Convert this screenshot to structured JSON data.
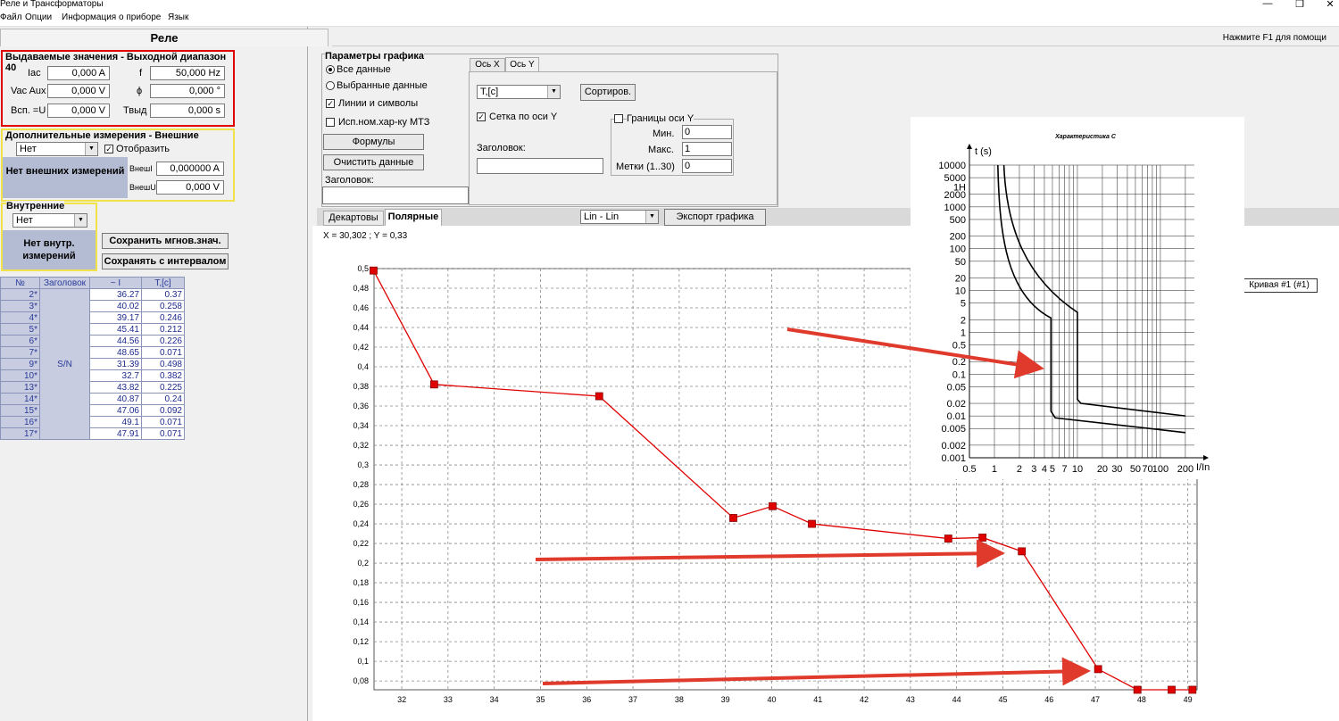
{
  "window": {
    "title": "Реле и Трансформаторы",
    "menu": [
      "Файл",
      "Опции",
      "Информация о приборе",
      "Язык"
    ],
    "tab_rele": "Реле",
    "help": "Нажмите F1 для помощи"
  },
  "output": {
    "title": "Выдаваемые значения - Выходной диапазон 40",
    "iac_label": "Iac",
    "iac_value": "0,000 A",
    "vac_label": "Vac Aux",
    "vac_value": "0,000 V",
    "vsp_label": "Всп. =U",
    "vsp_value": "0,000 V",
    "f_label": "f",
    "f_value": "50,000 Hz",
    "phi_label": "ϕ",
    "phi_value": "0,000 °",
    "t_label": "Твыд",
    "t_value": "0,000 s"
  },
  "external": {
    "title": "Дополнительные измерения - Внешние",
    "combo": "Нет",
    "show_label": "Отобразить",
    "box": "Нет внешних измерений",
    "i_label": "ВнешI",
    "i_value": "0,000000 A",
    "u_label": "ВнешU",
    "u_value": "0,000 V"
  },
  "internal": {
    "title": "Внутренние",
    "combo": "Нет",
    "box": "Нет внутр. измерений",
    "save_now": "Сохранить мгнов.знач.",
    "save_interval": "Сохранять с интервалом"
  },
  "table": {
    "headers": [
      "№",
      "Заголовок",
      "~ I",
      "T,[c]"
    ],
    "group_label": "S/N",
    "rows": [
      {
        "n": "2*",
        "i": "36.27",
        "t": "0.37"
      },
      {
        "n": "3*",
        "i": "40.02",
        "t": "0.258"
      },
      {
        "n": "4*",
        "i": "39.17",
        "t": "0.246"
      },
      {
        "n": "5*",
        "i": "45.41",
        "t": "0.212"
      },
      {
        "n": "6*",
        "i": "44.56",
        "t": "0.226"
      },
      {
        "n": "7*",
        "i": "48.65",
        "t": "0.071"
      },
      {
        "n": "9*",
        "i": "31.39",
        "t": "0.498"
      },
      {
        "n": "10*",
        "i": "32.7",
        "t": "0.382"
      },
      {
        "n": "13*",
        "i": "43.82",
        "t": "0.225"
      },
      {
        "n": "14*",
        "i": "40.87",
        "t": "0.24"
      },
      {
        "n": "15*",
        "i": "47.06",
        "t": "0.092"
      },
      {
        "n": "16*",
        "i": "49.1",
        "t": "0.071"
      },
      {
        "n": "17*",
        "i": "47.91",
        "t": "0.071"
      }
    ]
  },
  "params": {
    "title": "Параметры графика",
    "all_data": "Все данные",
    "selected_data": "Выбранные данные",
    "lines_symbols": "Линии и символы",
    "use_mtz": "Исп.ном.хар-ку МТЗ",
    "formulas": "Формулы",
    "clear": "Очистить данные",
    "caption_label": "Заголовок:",
    "tab_x": "Ось X",
    "tab_y": "Ось Y",
    "y_combo": "T,[c]",
    "sort": "Сортиров.",
    "grid_y": "Сетка по оси Y",
    "bounds_y": "Границы оси Y",
    "y_caption_label": "Заголовок:",
    "min_label": "Мин.",
    "min_value": "0",
    "max_label": "Макс.",
    "max_value": "1",
    "ticks_label": "Метки (1..30)",
    "ticks_value": "0"
  },
  "graph_tabs": {
    "cartesian": "Декартовы",
    "polar": "Полярные",
    "scale": "Lin - Lin",
    "export": "Экспорт графика"
  },
  "cursor": "X = 30,302 ; Y = 0,33",
  "legend": "Кривая #1 (#1)",
  "overlay": {
    "title": "Характеристика C",
    "ylabel": "t (s)",
    "xlabel": "I/In",
    "yticks": [
      "10000",
      "5000",
      "1H",
      "2000",
      "1000",
      "500",
      "200",
      "100",
      "50",
      "20",
      "10",
      "5",
      "2",
      "1",
      "0.5",
      "0.2",
      "0.1",
      "0.05",
      "0.02",
      "0.01",
      "0.005",
      "0.002",
      "0.001"
    ],
    "xticks": [
      "0.5",
      "1",
      "2",
      "3",
      "4",
      "5",
      "7",
      "10",
      "20",
      "30",
      "50",
      "70",
      "100",
      "200"
    ]
  },
  "chart_data": {
    "type": "line",
    "x": [
      31.39,
      32.7,
      36.27,
      39.17,
      40.02,
      40.87,
      43.82,
      44.56,
      45.41,
      47.06,
      47.91,
      48.65,
      49.1
    ],
    "series": [
      {
        "values": [
          0.498,
          0.382,
          0.37,
          0.246,
          0.258,
          0.24,
          0.225,
          0.226,
          0.212,
          0.092,
          0.071,
          0.071,
          0.071
        ]
      }
    ],
    "xticks": [
      "32",
      "33",
      "34",
      "35",
      "36",
      "37",
      "38",
      "39",
      "40",
      "41",
      "42",
      "43",
      "44",
      "45",
      "46",
      "47",
      "48",
      "49"
    ],
    "yticks": [
      "0,5",
      "0,48",
      "0,46",
      "0,44",
      "0,42",
      "0,4",
      "0,38",
      "0,36",
      "0,34",
      "0,32",
      "0,3",
      "0,28",
      "0,26",
      "0,24",
      "0,22",
      "0,2",
      "0,18",
      "0,16",
      "0,14",
      "0,12",
      "0,1",
      "0,08"
    ],
    "xlim": [
      31.4,
      49.2
    ],
    "ylim": [
      0.071,
      0.5
    ],
    "grid": true,
    "color": "#e00000"
  }
}
